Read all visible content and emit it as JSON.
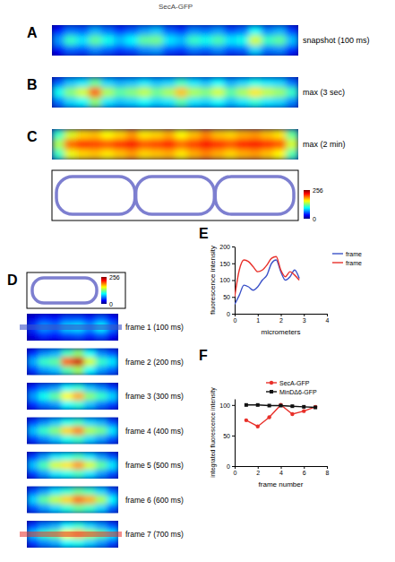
{
  "title": "SecA-GFP",
  "colorbars": [
    {
      "range": [
        0,
        256
      ],
      "ticks": [
        0,
        256
      ]
    },
    {
      "range": [
        0,
        256
      ],
      "ticks": [
        0,
        256
      ]
    }
  ],
  "chart_data": [
    {
      "type": "heatmap",
      "panel": "A",
      "label": "snapshot (100 ms)",
      "cells": [
        [
          35,
          60,
          55,
          75,
          60,
          45,
          55,
          70,
          80,
          55,
          45,
          65,
          60,
          70,
          50,
          60,
          95,
          65,
          75,
          45
        ],
        [
          70,
          110,
          90,
          120,
          100,
          80,
          95,
          120,
          125,
          90,
          80,
          110,
          100,
          115,
          90,
          100,
          150,
          110,
          120,
          80
        ],
        [
          30,
          55,
          50,
          65,
          55,
          45,
          50,
          65,
          70,
          50,
          45,
          60,
          55,
          65,
          50,
          55,
          85,
          60,
          65,
          40
        ]
      ]
    },
    {
      "type": "heatmap",
      "panel": "B",
      "label": "max (3 sec)",
      "cells": [
        [
          55,
          80,
          90,
          120,
          85,
          75,
          80,
          90,
          80,
          85,
          110,
          90,
          80,
          95,
          75,
          85,
          100,
          90,
          85,
          60
        ],
        [
          100,
          130,
          150,
          200,
          140,
          120,
          130,
          145,
          125,
          140,
          175,
          140,
          130,
          150,
          120,
          140,
          165,
          145,
          135,
          110
        ],
        [
          60,
          85,
          95,
          130,
          90,
          80,
          85,
          95,
          85,
          90,
          115,
          90,
          85,
          95,
          80,
          90,
          105,
          90,
          85,
          65
        ]
      ]
    },
    {
      "type": "heatmap",
      "panel": "C",
      "label": "max (2 min)",
      "cells": [
        [
          110,
          150,
          170,
          175,
          160,
          170,
          185,
          165,
          170,
          180,
          160,
          175,
          190,
          175,
          170,
          180,
          185,
          175,
          165,
          120
        ],
        [
          140,
          200,
          215,
          210,
          205,
          215,
          225,
          205,
          210,
          220,
          200,
          210,
          225,
          215,
          205,
          220,
          225,
          215,
          205,
          150
        ],
        [
          110,
          155,
          170,
          175,
          165,
          175,
          185,
          170,
          175,
          180,
          165,
          180,
          190,
          180,
          170,
          180,
          185,
          175,
          160,
          115
        ]
      ]
    },
    {
      "type": "heatmap",
      "panel": "D",
      "frames": [
        {
          "label": "frame 1 (100 ms)",
          "cells": [
            [
              25,
              40,
              35,
              50,
              50,
              40,
              55,
              35
            ],
            [
              45,
              70,
              60,
              85,
              90,
              70,
              95,
              60
            ],
            [
              25,
              40,
              35,
              45,
              50,
              40,
              50,
              30
            ]
          ]
        },
        {
          "label": "frame 2 (200 ms)",
          "cells": [
            [
              40,
              65,
              75,
              110,
              130,
              95,
              65,
              50
            ],
            [
              75,
              110,
              120,
              200,
              235,
              150,
              110,
              90
            ],
            [
              45,
              70,
              80,
              115,
              135,
              95,
              70,
              55
            ]
          ]
        },
        {
          "label": "frame 3 (300 ms)",
          "cells": [
            [
              40,
              60,
              70,
              95,
              105,
              80,
              65,
              45
            ],
            [
              70,
              100,
              120,
              160,
              180,
              130,
              110,
              85
            ],
            [
              40,
              60,
              70,
              95,
              105,
              80,
              60,
              45
            ]
          ]
        },
        {
          "label": "frame 4 (400 ms)",
          "cells": [
            [
              45,
              65,
              80,
              100,
              110,
              85,
              75,
              50
            ],
            [
              80,
              110,
              130,
              170,
              190,
              140,
              125,
              90
            ],
            [
              45,
              65,
              80,
              100,
              110,
              85,
              70,
              50
            ]
          ]
        },
        {
          "label": "frame 5 (500 ms)",
          "cells": [
            [
              45,
              70,
              90,
              100,
              110,
              90,
              70,
              50
            ],
            [
              80,
              115,
              150,
              165,
              185,
              150,
              120,
              90
            ],
            [
              45,
              70,
              90,
              100,
              110,
              90,
              70,
              50
            ]
          ]
        },
        {
          "label": "frame 6 (600 ms)",
          "cells": [
            [
              50,
              70,
              90,
              105,
              120,
              110,
              85,
              55
            ],
            [
              85,
              120,
              145,
              170,
              195,
              180,
              140,
              95
            ],
            [
              50,
              70,
              85,
              105,
              120,
              110,
              85,
              55
            ]
          ]
        },
        {
          "label": "frame 7 (700 ms)",
          "cells": [
            [
              45,
              65,
              75,
              95,
              105,
              85,
              70,
              50
            ],
            [
              80,
              110,
              125,
              160,
              175,
              140,
              120,
              90
            ],
            [
              45,
              65,
              75,
              95,
              100,
              85,
              70,
              50
            ]
          ]
        }
      ]
    },
    {
      "type": "line",
      "panel": "E",
      "x": [
        0,
        0.2,
        0.4,
        0.6,
        0.8,
        1.0,
        1.2,
        1.4,
        1.6,
        1.8,
        2.0,
        2.2,
        2.4,
        2.6,
        2.8
      ],
      "xlim": [
        0,
        4
      ],
      "xticks": [
        0,
        1,
        2,
        3,
        4
      ],
      "ylim": [
        0,
        200
      ],
      "yticks": [
        0,
        50,
        100,
        150,
        200
      ],
      "x_label": "micrometers",
      "y_label": "fluorescence intensity",
      "legend": "right",
      "series": [
        {
          "name": "frame",
          "color": "#3c52c8",
          "line_style": "smooth",
          "values": [
            28,
            55,
            85,
            80,
            70,
            80,
            100,
            115,
            150,
            160,
            125,
            100,
            110,
            130,
            105
          ]
        },
        {
          "name": "frame",
          "color": "#e8302a",
          "line_style": "smooth",
          "values": [
            50,
            130,
            160,
            155,
            140,
            125,
            130,
            145,
            165,
            170,
            130,
            110,
            125,
            115,
            100
          ]
        }
      ]
    },
    {
      "type": "line",
      "panel": "F",
      "x": [
        1,
        2,
        3,
        4,
        5,
        6,
        7
      ],
      "xlim": [
        0,
        8
      ],
      "xticks": [
        0,
        2,
        4,
        6,
        8
      ],
      "ylim": [
        0,
        110
      ],
      "yticks": [
        0,
        50,
        100
      ],
      "x_label": "frame number",
      "y_label": "integrated fluorescence intensity",
      "legend": "top",
      "series": [
        {
          "name": "SecA-GFP",
          "color": "#e8302a",
          "marker": "circle",
          "line_style": "solid",
          "values": [
            75,
            65,
            80,
            100,
            85,
            90,
            97
          ]
        },
        {
          "name": "MinDΔ6-GFP",
          "color": "#111111",
          "marker": "square",
          "line_style": "solid",
          "values": [
            100,
            100,
            99,
            99,
            98,
            97,
            96
          ]
        }
      ]
    }
  ]
}
